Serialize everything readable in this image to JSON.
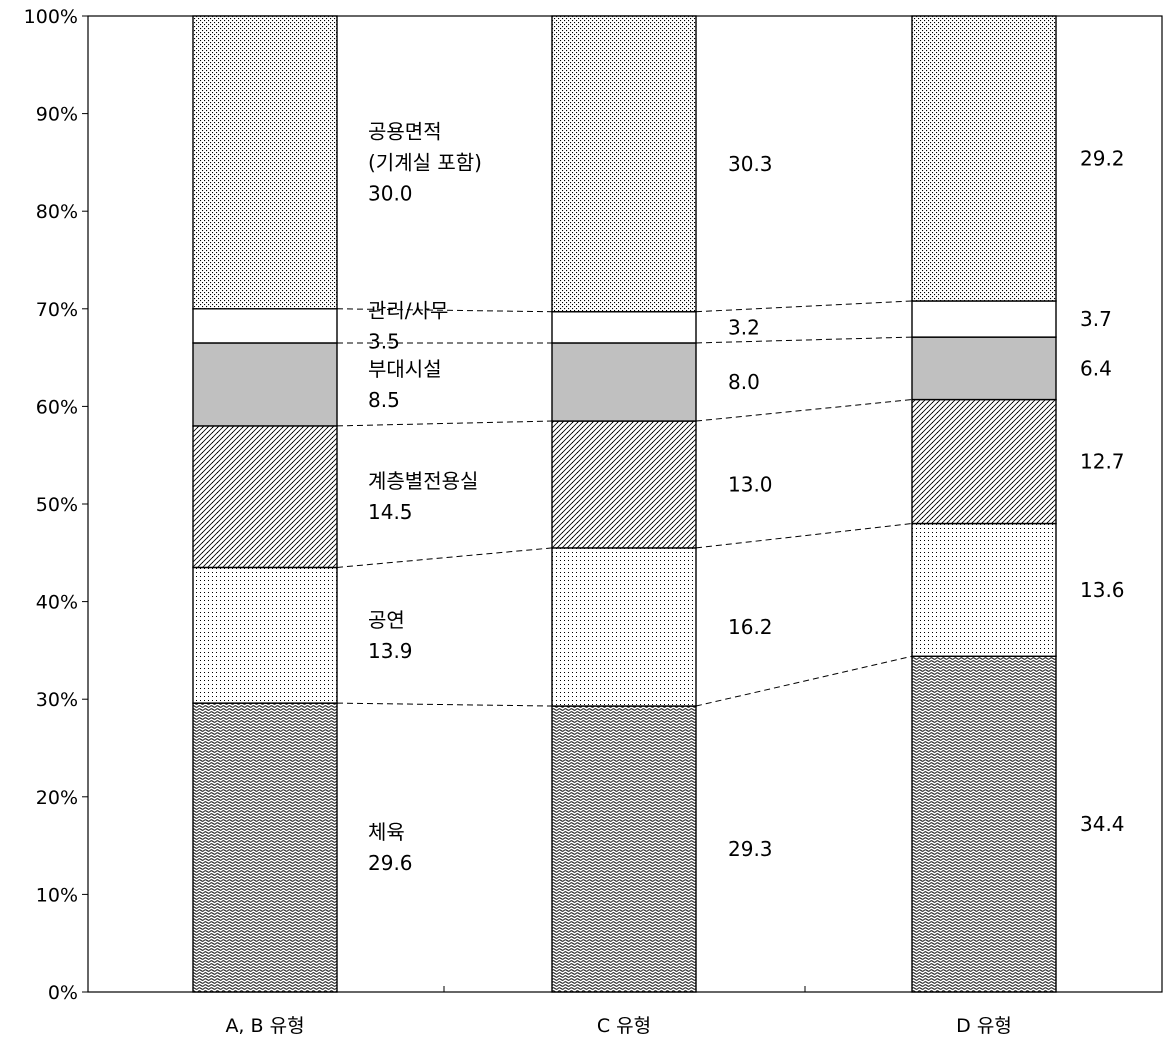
{
  "chart_data": {
    "type": "bar",
    "stacked": true,
    "categories": [
      "A, B 유형",
      "C 유형",
      "D 유형"
    ],
    "series": [
      {
        "name": "체육",
        "values": [
          29.6,
          29.3,
          34.4
        ],
        "pattern": "wave-dense"
      },
      {
        "name": "공연",
        "values": [
          13.9,
          16.2,
          13.6
        ],
        "pattern": "dots-fine"
      },
      {
        "name": "계층별전용실",
        "values": [
          14.5,
          13.0,
          12.7
        ],
        "pattern": "diagonal"
      },
      {
        "name": "부대시설",
        "values": [
          8.5,
          8.0,
          6.4
        ],
        "pattern": "solid-gray"
      },
      {
        "name": "관리/사무",
        "values": [
          3.5,
          3.2,
          3.7
        ],
        "pattern": "white"
      },
      {
        "name": "공용면적",
        "values": [
          30.0,
          30.3,
          29.2
        ],
        "pattern": "dots-coarse"
      }
    ],
    "inline_labels": [
      [
        "체육",
        "29.6"
      ],
      [
        "공연",
        "13.9"
      ],
      [
        "계층별전용실",
        "14.5"
      ],
      [
        "부대시설",
        "8.5"
      ],
      [
        "관리/사무",
        "3.5"
      ],
      [
        "공용면적",
        "(기계실 포함)",
        "30.0"
      ]
    ],
    "yticks": [
      "0%",
      "10%",
      "20%",
      "30%",
      "40%",
      "50%",
      "60%",
      "70%",
      "80%",
      "90%",
      "100%"
    ],
    "ylim": [
      0,
      100
    ],
    "title": "",
    "xlabel": "",
    "ylabel": "",
    "grid": false,
    "legend": "none"
  },
  "colors": {
    "axis": "#000000",
    "gray_fill": "#c0c0c0",
    "background": "#ffffff"
  }
}
